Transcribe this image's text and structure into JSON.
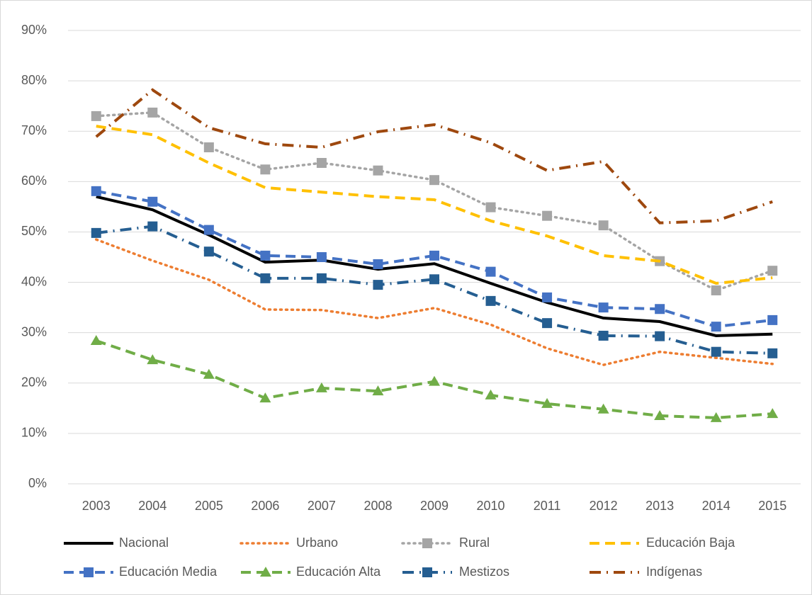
{
  "chart_data": {
    "type": "line",
    "x": [
      2003,
      2004,
      2005,
      2006,
      2007,
      2008,
      2009,
      2010,
      2011,
      2012,
      2013,
      2014,
      2015
    ],
    "ylim": [
      0,
      90
    ],
    "yticks": [
      {
        "value": 0,
        "label": "0%"
      },
      {
        "value": 10,
        "label": "10%"
      },
      {
        "value": 20,
        "label": "20%"
      },
      {
        "value": 30,
        "label": "30%"
      },
      {
        "value": 40,
        "label": "40%"
      },
      {
        "value": 50,
        "label": "50%"
      },
      {
        "value": 60,
        "label": "60%"
      },
      {
        "value": 70,
        "label": "70%"
      },
      {
        "value": 80,
        "label": "80%"
      },
      {
        "value": 90,
        "label": "90%"
      }
    ],
    "grid": true,
    "legend": "bottom",
    "series": [
      {
        "name": "Nacional",
        "color": "#000000",
        "style": "solid",
        "values": [
          57.0,
          54.4,
          49.4,
          44.0,
          44.4,
          42.6,
          43.7,
          39.8,
          36.0,
          32.9,
          32.2,
          29.4,
          29.7
        ]
      },
      {
        "name": "Urbano",
        "color": "#ed7d31",
        "style": "dot",
        "values": [
          48.5,
          44.3,
          40.5,
          34.6,
          34.5,
          32.9,
          34.9,
          31.6,
          26.9,
          23.6,
          26.2,
          25.0,
          23.8
        ]
      },
      {
        "name": "Rural",
        "color": "#a5a5a5",
        "style": "dot",
        "marker": "square",
        "values": [
          73.0,
          73.7,
          66.8,
          62.4,
          63.7,
          62.2,
          60.3,
          54.9,
          53.2,
          51.3,
          44.2,
          38.4,
          42.3
        ]
      },
      {
        "name": "Educación Baja",
        "color": "#ffc000",
        "style": "dash",
        "values": [
          71.0,
          69.3,
          63.7,
          58.8,
          57.9,
          57.0,
          56.4,
          52.2,
          49.2,
          45.3,
          44.2,
          39.8,
          40.9
        ]
      },
      {
        "name": "Educación Media",
        "color": "#4472c4",
        "style": "dash",
        "marker": "square",
        "values": [
          58.1,
          56.0,
          50.4,
          45.3,
          45.0,
          43.6,
          45.3,
          42.1,
          37.0,
          35.0,
          34.7,
          31.2,
          32.5
        ]
      },
      {
        "name": "Educación Alta",
        "color": "#70ad47",
        "style": "dash",
        "marker": "triangle",
        "values": [
          28.4,
          24.6,
          21.7,
          17.0,
          19.0,
          18.4,
          20.3,
          17.6,
          15.9,
          14.8,
          13.5,
          13.1,
          13.9
        ]
      },
      {
        "name": "Mestizos",
        "color": "#255e91",
        "style": "dashdot",
        "marker": "square",
        "values": [
          49.8,
          51.1,
          46.1,
          40.8,
          40.8,
          39.5,
          40.6,
          36.3,
          31.9,
          29.4,
          29.3,
          26.2,
          25.9
        ]
      },
      {
        "name": "Indígenas",
        "color": "#9e480e",
        "style": "dashdot",
        "values": [
          68.9,
          78.2,
          70.7,
          67.5,
          66.8,
          69.9,
          71.3,
          67.7,
          62.2,
          64.0,
          51.8,
          52.2,
          56.0
        ]
      }
    ]
  }
}
